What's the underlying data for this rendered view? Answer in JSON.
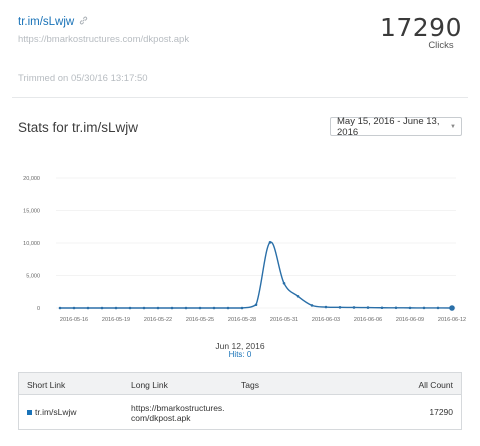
{
  "link": {
    "short_url": "tr.im/sLwjw",
    "long_url": "https://bmarkostructures.com/dkpost.apk",
    "clicks": "17290",
    "clicks_label": "Clicks",
    "trimmed_text": "Trimmed on 05/30/16 13:17:50"
  },
  "stats": {
    "title": "Stats for tr.im/sLwjw",
    "date_range": "May 15, 2016 - June 13, 2016",
    "tooltip_date": "Jun 12, 2016",
    "tooltip_hits": "Hits: 0"
  },
  "colors": {
    "accent": "#1a73b8",
    "line": "#2a6fa8",
    "grid": "#e8e8e8"
  },
  "chart_data": {
    "type": "line",
    "x": [
      "2016-05-15",
      "2016-05-16",
      "2016-05-17",
      "2016-05-18",
      "2016-05-19",
      "2016-05-20",
      "2016-05-21",
      "2016-05-22",
      "2016-05-23",
      "2016-05-24",
      "2016-05-25",
      "2016-05-26",
      "2016-05-27",
      "2016-05-28",
      "2016-05-29",
      "2016-05-30",
      "2016-05-31",
      "2016-06-01",
      "2016-06-02",
      "2016-06-03",
      "2016-06-04",
      "2016-06-05",
      "2016-06-06",
      "2016-06-07",
      "2016-06-08",
      "2016-06-09",
      "2016-06-10",
      "2016-06-11",
      "2016-06-12"
    ],
    "x_tick_labels": [
      "2016-05-16",
      "2016-05-19",
      "2016-05-22",
      "2016-05-25",
      "2016-05-28",
      "2016-05-31",
      "2016-06-03",
      "2016-06-06",
      "2016-06-09",
      "2016-06-12"
    ],
    "series": [
      {
        "values": [
          0,
          0,
          0,
          0,
          0,
          0,
          0,
          0,
          0,
          0,
          0,
          0,
          0,
          0,
          500,
          10100,
          3800,
          1800,
          400,
          150,
          100,
          80,
          60,
          40,
          30,
          20,
          15,
          10,
          0
        ]
      }
    ],
    "y_ticks": [
      0,
      5000,
      10000,
      15000,
      20000
    ],
    "y_tick_labels": [
      "0",
      "5,000",
      "10,000",
      "15,000",
      "20,000"
    ],
    "ylim": [
      0,
      20000
    ],
    "grid": true
  },
  "table": {
    "headers": {
      "short": "Short Link",
      "long": "Long Link",
      "tags": "Tags",
      "count": "All Count"
    },
    "rows": [
      {
        "short": "tr.im/sLwjw",
        "long_1": "https://bmarkostructures.",
        "long_2": "com/dkpost.apk",
        "tags": "",
        "count": "17290"
      }
    ]
  }
}
